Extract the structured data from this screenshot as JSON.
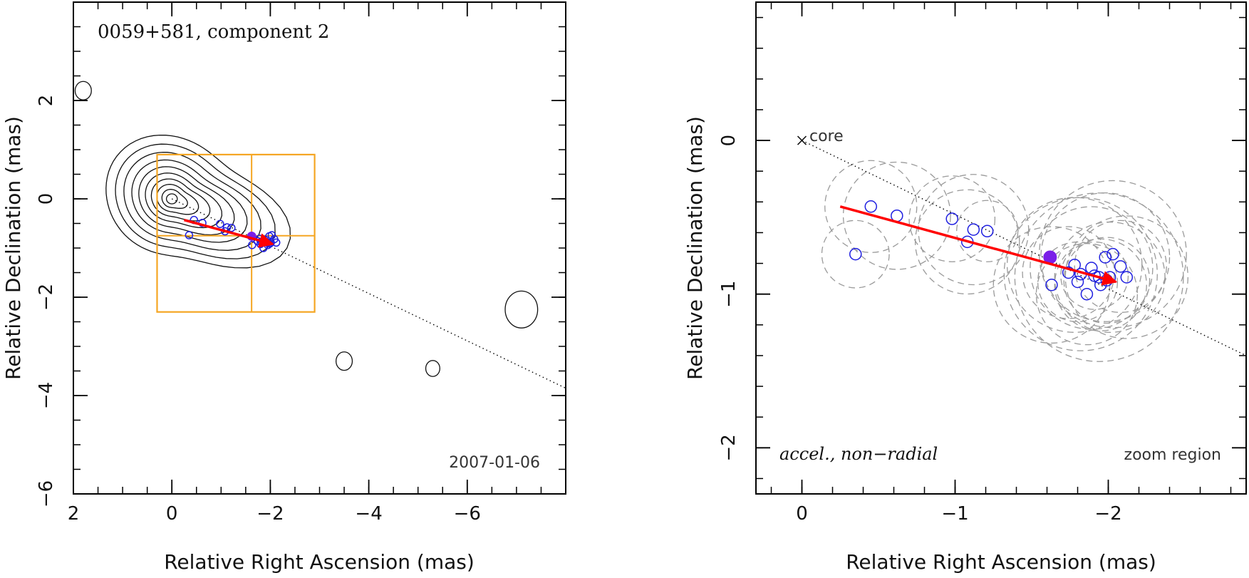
{
  "chart_data": [
    {
      "type": "scatter",
      "title": "0059+581, component 2",
      "xlabel": "Relative Right Ascension (mas)",
      "ylabel": "Relative Declination (mas)",
      "xlim": [
        2,
        -8
      ],
      "ylim": [
        -6,
        4
      ],
      "xticks": [
        2,
        0,
        -2,
        -4,
        -6
      ],
      "xtick_labels": [
        "2",
        "0",
        "−2",
        "−4",
        "−6"
      ],
      "yticks": [
        2,
        0,
        -2,
        -4,
        -6
      ],
      "ytick_labels": [
        "2",
        "0",
        "−2",
        "−4",
        "−6"
      ],
      "epoch_label": "2007-01-06",
      "accent_color": "#ff0000",
      "box_color": "#f5a623",
      "point_color": "#1f1fe0",
      "highlight_color": "#7a1fe8",
      "contour_levels": [
        0.11,
        0.19,
        0.28,
        0.38,
        0.49,
        0.61,
        0.74,
        0.89,
        1.05,
        1.23
      ],
      "contour_labels": [],
      "dotted_line": [
        [
          0,
          0
        ],
        [
          -8,
          -3.85
        ]
      ],
      "motion_vector": {
        "from": [
          -0.25,
          -0.43
        ],
        "to": [
          -2.05,
          -0.92
        ]
      },
      "zoom_box": {
        "x": [
          0.3,
          -2.9
        ],
        "y": [
          0.9,
          -2.3
        ],
        "split_x": -1.62,
        "split_y": -0.75
      },
      "highlight_point": [
        -1.62,
        -0.76
      ],
      "points": [
        [
          -0.45,
          -0.43
        ],
        [
          -0.62,
          -0.49
        ],
        [
          -0.35,
          -0.74
        ],
        [
          -0.98,
          -0.51
        ],
        [
          -1.12,
          -0.58
        ],
        [
          -1.21,
          -0.59
        ],
        [
          -1.08,
          -0.66
        ],
        [
          -1.63,
          -0.94
        ],
        [
          -1.74,
          -0.86
        ],
        [
          -1.78,
          -0.81
        ],
        [
          -1.8,
          -0.92
        ],
        [
          -1.82,
          -0.87
        ],
        [
          -1.86,
          -1.0
        ],
        [
          -1.89,
          -0.83
        ],
        [
          -1.91,
          -0.88
        ],
        [
          -1.94,
          -0.89
        ],
        [
          -1.95,
          -0.94
        ],
        [
          -1.98,
          -0.76
        ],
        [
          -1.99,
          -0.91
        ],
        [
          -2.01,
          -0.89
        ],
        [
          -2.03,
          -0.74
        ],
        [
          -2.08,
          -0.82
        ],
        [
          -2.12,
          -0.89
        ]
      ],
      "islands": [
        {
          "x": 1.8,
          "y": 2.2,
          "r": 0.15
        },
        {
          "x": -7.1,
          "y": -2.25,
          "r": 0.3
        },
        {
          "x": -5.3,
          "y": -3.45,
          "r": 0.13
        },
        {
          "x": -3.5,
          "y": -3.3,
          "r": 0.15
        }
      ]
    },
    {
      "type": "scatter",
      "title": "",
      "xlabel": "Relative Right Ascension (mas)",
      "ylabel": "Relative Declination (mas)",
      "xlim": [
        0.3,
        -2.9
      ],
      "ylim": [
        -2.3,
        0.9
      ],
      "xticks": [
        0,
        -1,
        -2
      ],
      "xtick_labels": [
        "0",
        "−1",
        "−2"
      ],
      "yticks": [
        0,
        -1,
        -2
      ],
      "ytick_labels": [
        "0",
        "−1",
        "−2"
      ],
      "core_label": "core",
      "classification": "accel., non−radial",
      "region_label": "zoom region",
      "dotted_line": [
        [
          0,
          0
        ],
        [
          -2.9,
          -1.4
        ]
      ],
      "motion_vector": {
        "from": [
          -0.25,
          -0.43
        ],
        "to": [
          -2.05,
          -0.92
        ]
      },
      "highlight_point": [
        -1.62,
        -0.76
      ],
      "points": [
        [
          -0.45,
          -0.43
        ],
        [
          -0.62,
          -0.49
        ],
        [
          -0.35,
          -0.74
        ],
        [
          -0.98,
          -0.51
        ],
        [
          -1.12,
          -0.58
        ],
        [
          -1.21,
          -0.59
        ],
        [
          -1.08,
          -0.66
        ],
        [
          -1.63,
          -0.94
        ],
        [
          -1.74,
          -0.86
        ],
        [
          -1.78,
          -0.81
        ],
        [
          -1.8,
          -0.92
        ],
        [
          -1.82,
          -0.87
        ],
        [
          -1.86,
          -1.0
        ],
        [
          -1.89,
          -0.83
        ],
        [
          -1.91,
          -0.88
        ],
        [
          -1.94,
          -0.89
        ],
        [
          -1.95,
          -0.94
        ],
        [
          -1.98,
          -0.76
        ],
        [
          -1.99,
          -0.91
        ],
        [
          -2.01,
          -0.89
        ],
        [
          -2.03,
          -0.74
        ],
        [
          -2.08,
          -0.82
        ],
        [
          -2.12,
          -0.89
        ]
      ],
      "error_circles": [
        {
          "x": -0.45,
          "y": -0.43,
          "r": 0.3
        },
        {
          "x": -0.62,
          "y": -0.49,
          "r": 0.35
        },
        {
          "x": -0.35,
          "y": -0.74,
          "r": 0.22
        },
        {
          "x": -0.98,
          "y": -0.51,
          "r": 0.28
        },
        {
          "x": -1.12,
          "y": -0.58,
          "r": 0.36
        },
        {
          "x": -1.21,
          "y": -0.59,
          "r": 0.2
        },
        {
          "x": -1.08,
          "y": -0.66,
          "r": 0.34
        },
        {
          "x": -1.63,
          "y": -0.94,
          "r": 0.38
        },
        {
          "x": -1.74,
          "y": -0.86,
          "r": 0.3
        },
        {
          "x": -1.78,
          "y": -0.81,
          "r": 0.44
        },
        {
          "x": -1.8,
          "y": -0.92,
          "r": 0.26
        },
        {
          "x": -1.82,
          "y": -0.87,
          "r": 0.5
        },
        {
          "x": -1.86,
          "y": -1.0,
          "r": 0.33
        },
        {
          "x": -1.89,
          "y": -0.83,
          "r": 0.4
        },
        {
          "x": -1.91,
          "y": -0.88,
          "r": 0.22
        },
        {
          "x": -1.94,
          "y": -0.89,
          "r": 0.55
        },
        {
          "x": -1.95,
          "y": -0.94,
          "r": 0.3
        },
        {
          "x": -1.98,
          "y": -0.76,
          "r": 0.42
        },
        {
          "x": -1.99,
          "y": -0.91,
          "r": 0.28
        },
        {
          "x": -2.01,
          "y": -0.89,
          "r": 0.36
        },
        {
          "x": -2.03,
          "y": -0.74,
          "r": 0.48
        },
        {
          "x": -2.08,
          "y": -0.82,
          "r": 0.3
        },
        {
          "x": -2.12,
          "y": -0.89,
          "r": 0.4
        }
      ]
    }
  ]
}
